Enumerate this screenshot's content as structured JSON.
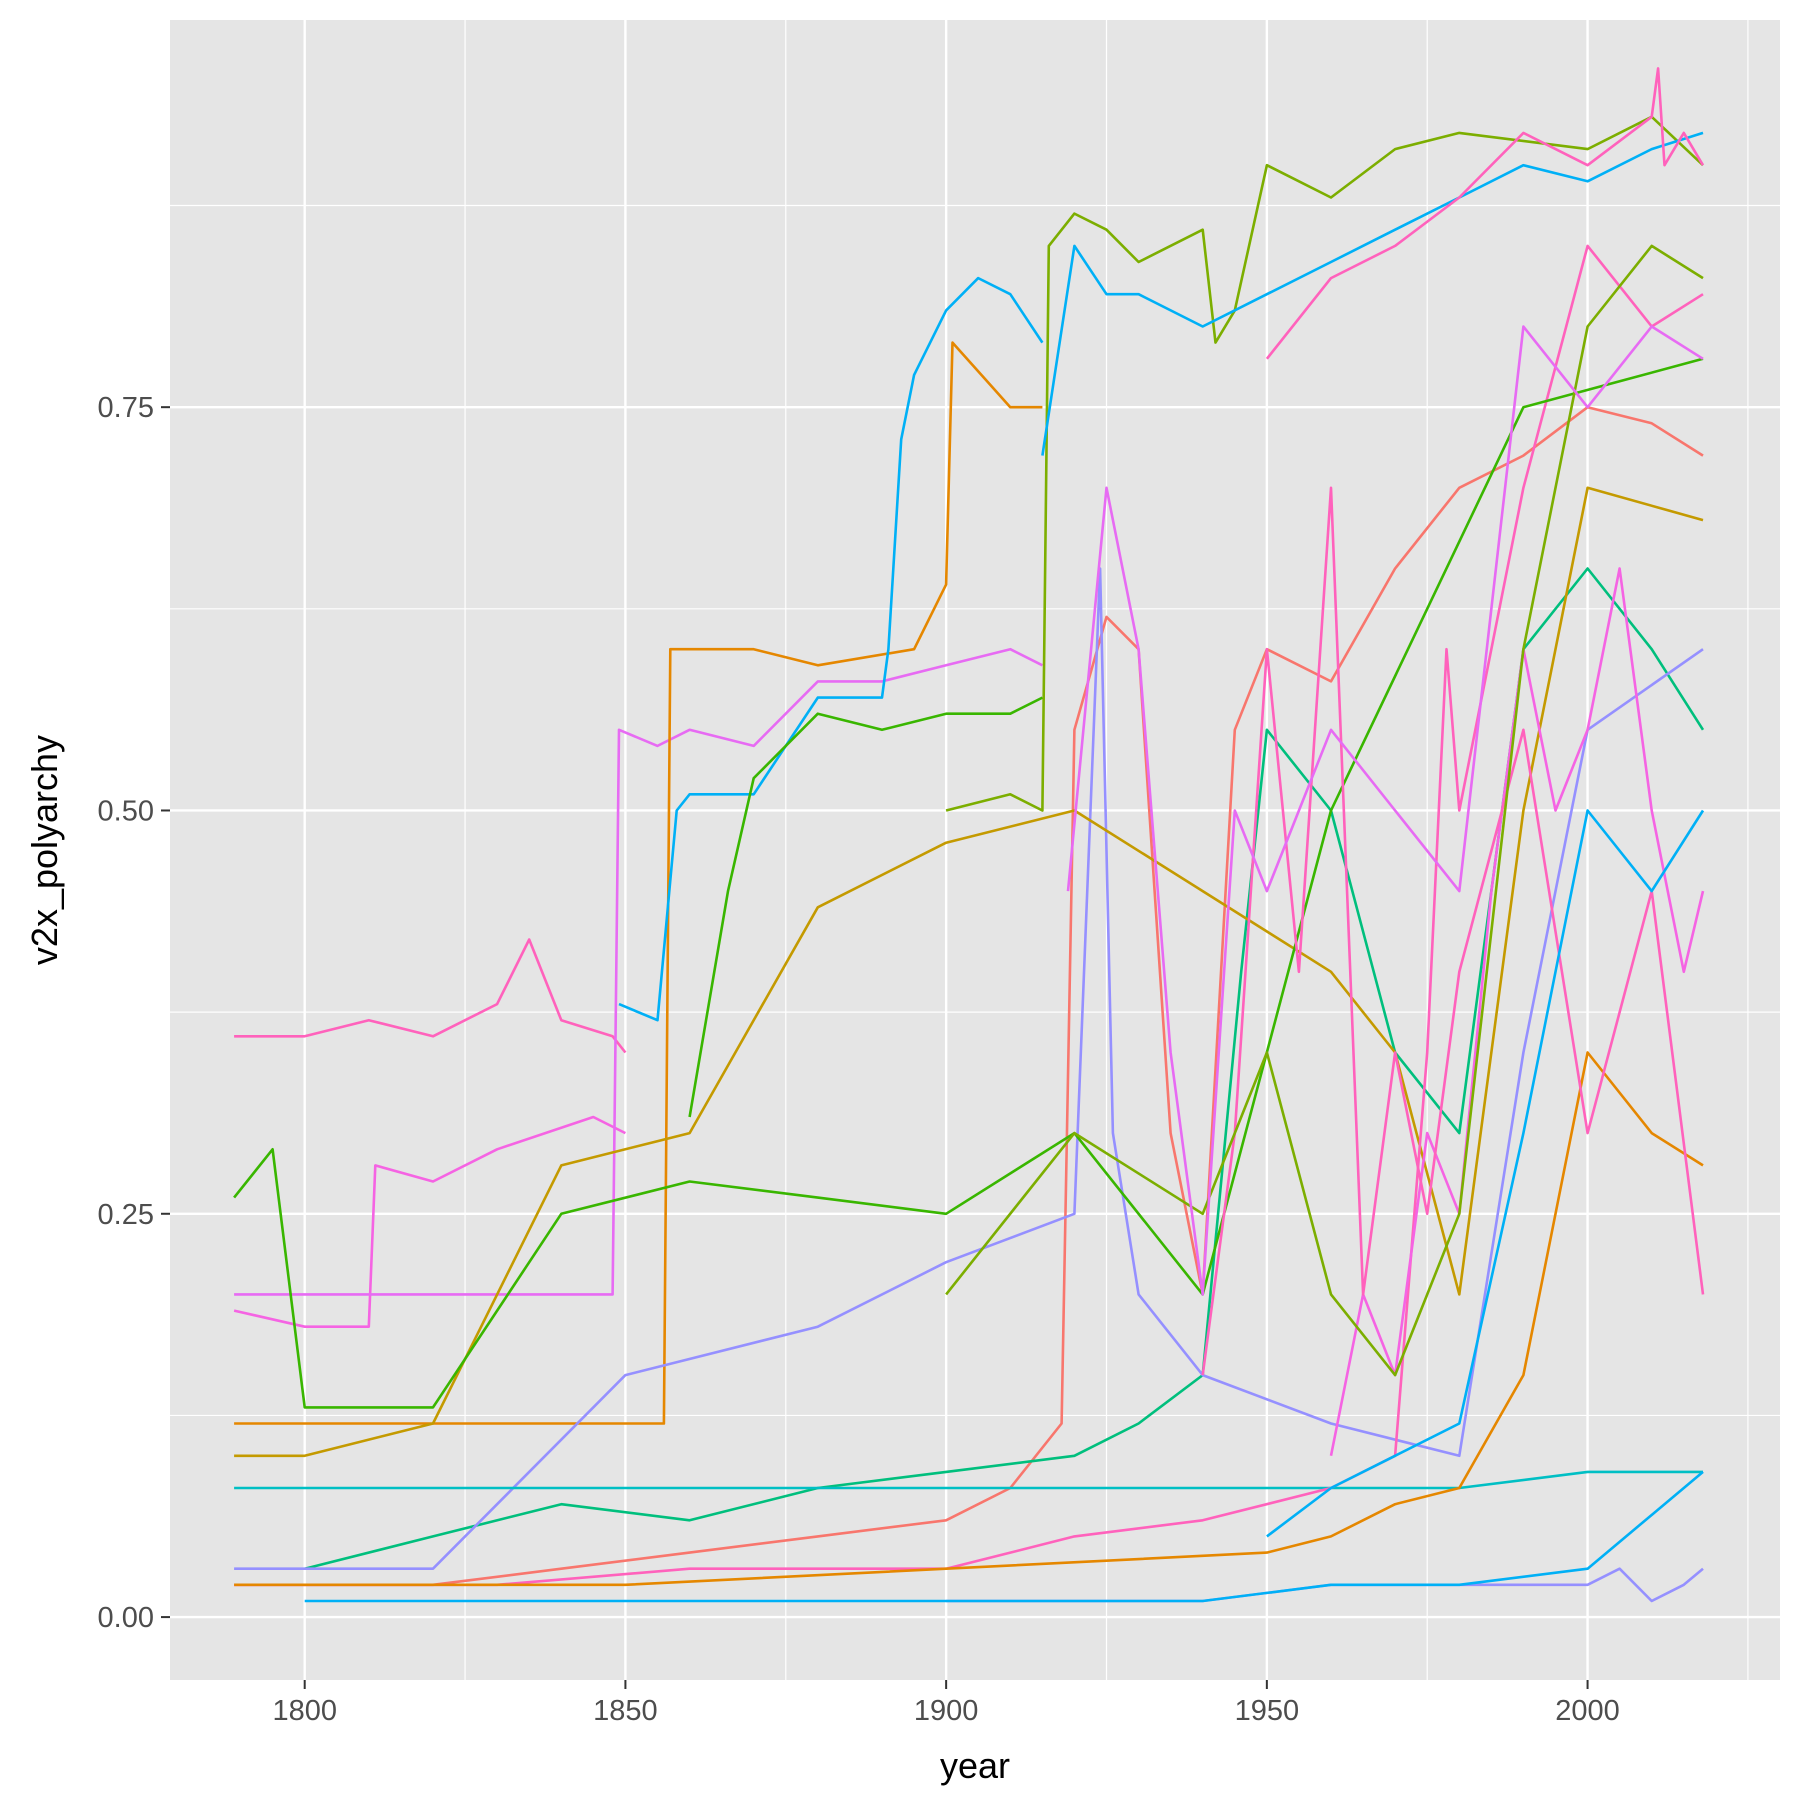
{
  "chart_data": {
    "type": "line",
    "title": "",
    "xlabel": "year",
    "ylabel": "v2x_polyarchy",
    "xlim": [
      1779,
      2030
    ],
    "ylim": [
      -0.039,
      0.99
    ],
    "x_ticks": [
      1800,
      1850,
      1900,
      1950,
      2000
    ],
    "x_tick_labels": [
      "1800",
      "1850",
      "1900",
      "1950",
      "2000"
    ],
    "y_ticks": [
      0.0,
      0.25,
      0.5,
      0.75
    ],
    "y_tick_labels": [
      "0.00",
      "0.25",
      "0.50",
      "0.75"
    ],
    "grid": true,
    "legend": "none",
    "colors": {
      "panel": "#e5e5e5",
      "grid": "#ffffff",
      "palette": [
        "#f8766d",
        "#e76bf3",
        "#ff62bc",
        "#00b0f6",
        "#00bf7d",
        "#7cae00",
        "#c49a00",
        "#e58700",
        "#9590ff",
        "#00bfc4",
        "#39b600",
        "#f564e3"
      ]
    },
    "series": [
      {
        "color": "#ff62bc",
        "x": [
          1789,
          1800,
          1810,
          1820,
          1830,
          1835,
          1840,
          1848,
          1850
        ],
        "values": [
          0.36,
          0.36,
          0.37,
          0.36,
          0.38,
          0.42,
          0.37,
          0.36,
          0.35
        ]
      },
      {
        "color": "#f564e3",
        "x": [
          1789,
          1800,
          1810,
          1811,
          1820,
          1830,
          1845,
          1850
        ],
        "values": [
          0.19,
          0.18,
          0.18,
          0.28,
          0.27,
          0.29,
          0.31,
          0.3
        ]
      },
      {
        "color": "#e76bf3",
        "x": [
          1789,
          1848,
          1849,
          1855,
          1860,
          1870,
          1880,
          1890,
          1900,
          1910,
          1915
        ],
        "values": [
          0.2,
          0.2,
          0.55,
          0.54,
          0.55,
          0.54,
          0.58,
          0.58,
          0.59,
          0.6,
          0.59
        ]
      },
      {
        "color": "#e58700",
        "x": [
          1789,
          1856,
          1857,
          1870,
          1880,
          1895,
          1900,
          1901,
          1910,
          1915
        ],
        "values": [
          0.12,
          0.12,
          0.6,
          0.6,
          0.59,
          0.6,
          0.64,
          0.79,
          0.75,
          0.75
        ]
      },
      {
        "color": "#00b0f6",
        "x": [
          1849,
          1855,
          1858,
          1860,
          1870,
          1880,
          1890,
          1891,
          1893,
          1895,
          1900,
          1905,
          1910,
          1915
        ],
        "values": [
          0.38,
          0.37,
          0.5,
          0.51,
          0.51,
          0.57,
          0.57,
          0.6,
          0.73,
          0.77,
          0.81,
          0.83,
          0.82,
          0.79
        ]
      },
      {
        "color": "#39b600",
        "x": [
          1860,
          1866,
          1870,
          1880,
          1890,
          1900,
          1910,
          1915
        ],
        "values": [
          0.31,
          0.45,
          0.52,
          0.56,
          0.55,
          0.56,
          0.56,
          0.57
        ]
      },
      {
        "color": "#7cae00",
        "x": [
          1900,
          1910,
          1915,
          1916,
          1920,
          1925,
          1930,
          1940,
          1942,
          1945,
          1950,
          1960,
          1970,
          1980,
          2000,
          2010,
          2018
        ],
        "values": [
          0.5,
          0.51,
          0.5,
          0.85,
          0.87,
          0.86,
          0.84,
          0.86,
          0.79,
          0.81,
          0.9,
          0.88,
          0.91,
          0.92,
          0.91,
          0.93,
          0.9
        ]
      },
      {
        "color": "#00b0f6",
        "x": [
          1915,
          1920,
          1925,
          1930,
          1940,
          1950,
          1960,
          1970,
          1980,
          1990,
          2000,
          2010,
          2018
        ],
        "values": [
          0.72,
          0.85,
          0.82,
          0.82,
          0.8,
          0.82,
          0.84,
          0.86,
          0.88,
          0.9,
          0.89,
          0.91,
          0.92
        ]
      },
      {
        "color": "#ff62bc",
        "x": [
          1950,
          1960,
          1970,
          1980,
          1990,
          2000,
          2010,
          2011,
          2012,
          2015,
          2018
        ],
        "values": [
          0.78,
          0.83,
          0.85,
          0.88,
          0.92,
          0.9,
          0.93,
          0.96,
          0.9,
          0.92,
          0.9
        ]
      },
      {
        "color": "#f8766d",
        "x": [
          1789,
          1800,
          1820,
          1840,
          1860,
          1880,
          1900,
          1910,
          1918,
          1920,
          1925,
          1930,
          1935,
          1940,
          1945,
          1950,
          1960,
          1970,
          1980,
          1990,
          2000,
          2010,
          2018
        ],
        "values": [
          0.02,
          0.02,
          0.02,
          0.03,
          0.04,
          0.05,
          0.06,
          0.08,
          0.12,
          0.55,
          0.62,
          0.6,
          0.3,
          0.2,
          0.55,
          0.6,
          0.58,
          0.65,
          0.7,
          0.72,
          0.75,
          0.74,
          0.72
        ]
      },
      {
        "color": "#00bf7d",
        "x": [
          1800,
          1820,
          1840,
          1860,
          1880,
          1900,
          1920,
          1930,
          1940,
          1946,
          1950,
          1960,
          1970,
          1980,
          1990,
          2000,
          2010,
          2018
        ],
        "values": [
          0.03,
          0.05,
          0.07,
          0.06,
          0.08,
          0.09,
          0.1,
          0.12,
          0.15,
          0.4,
          0.55,
          0.5,
          0.35,
          0.3,
          0.6,
          0.65,
          0.6,
          0.55
        ]
      },
      {
        "color": "#9590ff",
        "x": [
          1789,
          1820,
          1850,
          1880,
          1900,
          1920,
          1924,
          1926,
          1930,
          1940,
          1960,
          1980,
          1990,
          2000,
          2018
        ],
        "values": [
          0.03,
          0.03,
          0.15,
          0.18,
          0.22,
          0.25,
          0.65,
          0.3,
          0.2,
          0.15,
          0.12,
          0.1,
          0.35,
          0.55,
          0.6
        ]
      },
      {
        "color": "#9590ff",
        "x": [
          1900,
          1920,
          1940,
          1960,
          1980,
          2000,
          2005,
          2010,
          2015,
          2018
        ],
        "values": [
          0.01,
          0.01,
          0.01,
          0.02,
          0.02,
          0.02,
          0.03,
          0.01,
          0.02,
          0.03
        ]
      },
      {
        "color": "#00bfc4",
        "x": [
          1789,
          1850,
          1900,
          1950,
          1980,
          2000,
          2018
        ],
        "values": [
          0.08,
          0.08,
          0.08,
          0.08,
          0.08,
          0.09,
          0.09
        ]
      },
      {
        "color": "#c49a00",
        "x": [
          1789,
          1800,
          1820,
          1840,
          1860,
          1880,
          1900,
          1920,
          1940,
          1960,
          1970,
          1980,
          1990,
          2000,
          2018
        ],
        "values": [
          0.1,
          0.1,
          0.12,
          0.28,
          0.3,
          0.44,
          0.48,
          0.5,
          0.45,
          0.4,
          0.35,
          0.2,
          0.5,
          0.7,
          0.68
        ]
      },
      {
        "color": "#00b0f6",
        "x": [
          1800,
          1820,
          1840,
          1860,
          1880,
          1900,
          1940,
          1960,
          1980,
          2000,
          2018
        ],
        "values": [
          0.01,
          0.01,
          0.01,
          0.01,
          0.01,
          0.01,
          0.01,
          0.02,
          0.02,
          0.03,
          0.09
        ]
      },
      {
        "color": "#ff62bc",
        "x": [
          1789,
          1830,
          1860,
          1880,
          1900,
          1910,
          1920,
          1940,
          1960,
          1970,
          1975,
          1978,
          1980,
          1990,
          2000,
          2010,
          2018
        ],
        "values": [
          0.02,
          0.02,
          0.03,
          0.03,
          0.03,
          0.04,
          0.05,
          0.06,
          0.08,
          0.1,
          0.35,
          0.6,
          0.5,
          0.7,
          0.85,
          0.8,
          0.82
        ]
      },
      {
        "color": "#e58700",
        "x": [
          1789,
          1850,
          1900,
          1950,
          1960,
          1970,
          1980,
          1990,
          2000,
          2010,
          2018
        ],
        "values": [
          0.02,
          0.02,
          0.03,
          0.04,
          0.05,
          0.07,
          0.08,
          0.15,
          0.35,
          0.3,
          0.28
        ]
      },
      {
        "color": "#39b600",
        "x": [
          1789,
          1795,
          1800,
          1810,
          1820,
          1840,
          1860,
          1880,
          1900,
          1920,
          1940,
          1960,
          1990,
          2018
        ],
        "values": [
          0.26,
          0.29,
          0.13,
          0.13,
          0.13,
          0.25,
          0.27,
          0.26,
          0.25,
          0.3,
          0.2,
          0.5,
          0.75,
          0.78
        ]
      },
      {
        "color": "#f564e3",
        "x": [
          1960,
          1965,
          1970,
          1975,
          1980,
          1985,
          1990,
          1995,
          2000,
          2005,
          2010,
          2015,
          2018
        ],
        "values": [
          0.1,
          0.2,
          0.15,
          0.3,
          0.25,
          0.45,
          0.6,
          0.5,
          0.55,
          0.65,
          0.5,
          0.4,
          0.45
        ]
      },
      {
        "color": "#ff62bc",
        "x": [
          1940,
          1945,
          1950,
          1955,
          1960,
          1965,
          1970,
          1975,
          1980,
          1990,
          2000,
          2010,
          2018
        ],
        "values": [
          0.15,
          0.3,
          0.6,
          0.4,
          0.7,
          0.2,
          0.35,
          0.25,
          0.4,
          0.55,
          0.3,
          0.45,
          0.2
        ]
      },
      {
        "color": "#00b0f6",
        "x": [
          1950,
          1960,
          1970,
          1980,
          1990,
          2000,
          2010,
          2018
        ],
        "values": [
          0.05,
          0.08,
          0.1,
          0.12,
          0.3,
          0.5,
          0.45,
          0.5
        ]
      },
      {
        "color": "#7cae00",
        "x": [
          1900,
          1920,
          1940,
          1950,
          1960,
          1970,
          1980,
          1990,
          2000,
          2010,
          2018
        ],
        "values": [
          0.2,
          0.3,
          0.25,
          0.35,
          0.2,
          0.15,
          0.25,
          0.6,
          0.8,
          0.85,
          0.83
        ]
      },
      {
        "color": "#e76bf3",
        "x": [
          1919,
          1925,
          1930,
          1935,
          1940,
          1945,
          1950,
          1960,
          1970,
          1980,
          1990,
          2000,
          2010,
          2018
        ],
        "values": [
          0.45,
          0.7,
          0.6,
          0.35,
          0.2,
          0.5,
          0.45,
          0.55,
          0.5,
          0.45,
          0.8,
          0.75,
          0.8,
          0.78
        ]
      }
    ]
  }
}
